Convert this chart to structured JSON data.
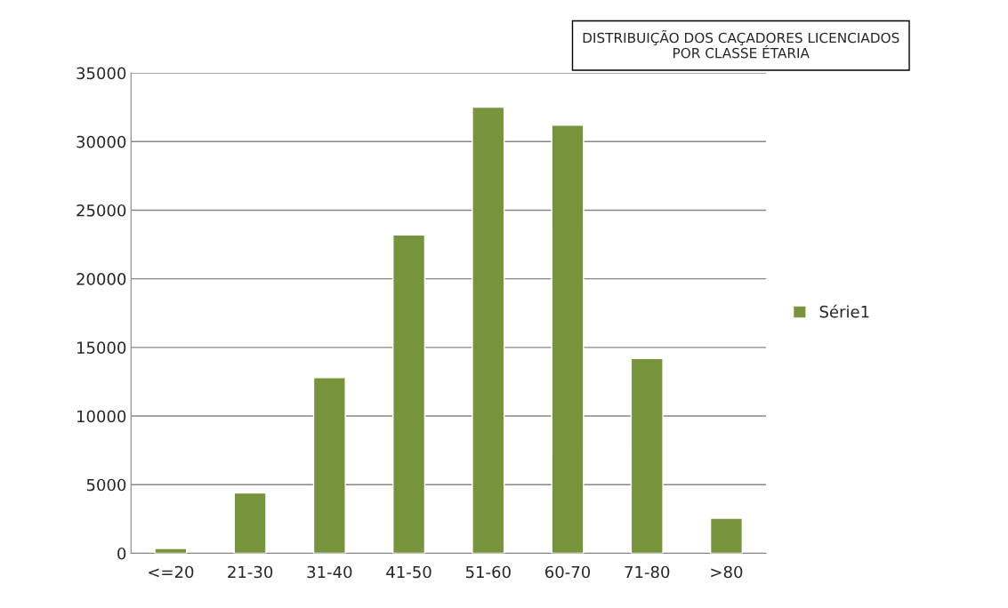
{
  "chart_data": {
    "type": "bar",
    "title": "DISTRIBUIÇÃO DOS CAÇADORES LICENCIADOS\nPOR CLASSE ÉTARIA",
    "categories": [
      "<=20",
      "21-30",
      "31-40",
      "41-50",
      "51-60",
      "60-70",
      "71-80",
      ">80"
    ],
    "series": [
      {
        "name": "Série1",
        "color": "#77933c",
        "values": [
          350,
          4400,
          12800,
          23200,
          32500,
          31200,
          14200,
          2550
        ]
      }
    ],
    "ylim": [
      0,
      35000
    ],
    "yticks": [
      0,
      5000,
      10000,
      15000,
      20000,
      25000,
      30000,
      35000
    ],
    "grid": "y",
    "legend": "right"
  }
}
